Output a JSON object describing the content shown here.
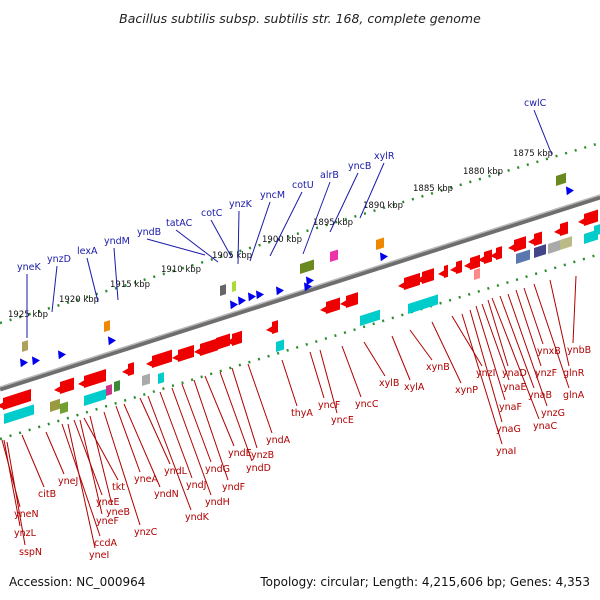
{
  "title": "Bacillus subtilis subsp. subtilis str. 168, complete genome",
  "accession": "Accession: NC_000964",
  "summary": "Topology: circular; Length: 4,215,606 bp; Genes: 4,353",
  "kbp_ticks": [
    "1925 kbp",
    "1920 kbp",
    "1915 kbp",
    "1910 kbp",
    "1905 kbp",
    "1900 kbp",
    "1895 kbp",
    "1890 kbp",
    "1885 kbp",
    "1880 kbp",
    "1875 kbp"
  ],
  "top_labels": [
    "yneK",
    "ynzD",
    "lexA",
    "yndM",
    "yndB",
    "tatAC",
    "cotC",
    "ynzK",
    "yncM",
    "cotU",
    "alrB",
    "yncB",
    "xylR",
    "cwlC"
  ],
  "bottom_labels": [
    "yneN",
    "ynzL",
    "sspN",
    "citB",
    "yneJ",
    "ccdA",
    "yneI",
    "yneE",
    "yneF",
    "tkt",
    "yneB",
    "ynzC",
    "yneA",
    "yndN",
    "yndL",
    "yndK",
    "yndJ",
    "yndH",
    "yndG",
    "yndF",
    "yndE",
    "yndD",
    "ynzB",
    "yndA",
    "thyA",
    "yncF",
    "yncE",
    "yncC",
    "xylB",
    "xylA",
    "xynB",
    "xynP",
    "ynzI",
    "ynaI",
    "ynaG",
    "ynaF",
    "ynaE",
    "ynaD",
    "ynaC",
    "ynaB",
    "ynzG",
    "ynzF",
    "ynxB",
    "glnA",
    "glnR",
    "ynbB"
  ],
  "colors": {
    "forward_gene": "#0000ee",
    "reverse_gene": "#ee0000",
    "cds": "#00cccc",
    "backbone": "#808080",
    "tick": "#2e8b2e",
    "label_forward": "#1a1aa8",
    "label_reverse": "#b00000"
  }
}
